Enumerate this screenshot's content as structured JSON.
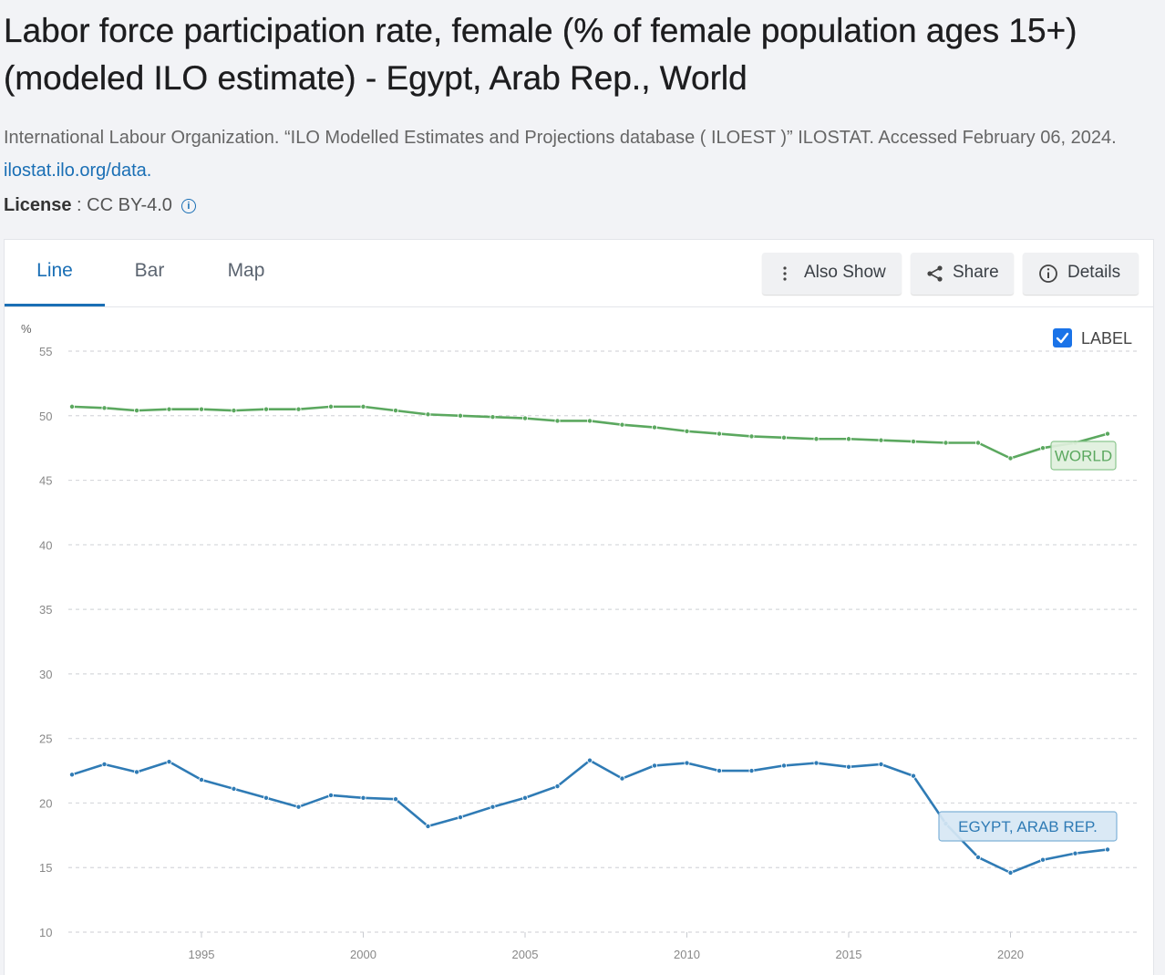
{
  "page": {
    "title": "Labor force participation rate, female (% of female population ages 15+) (modeled ILO estimate) - Egypt, Arab Rep., World",
    "source_text": "International Labour Organization. “ILO Modelled Estimates and Projections database ( ILOEST )” ILOSTAT. Accessed February 06, 2024. ",
    "source_link": "ilostat.ilo.org/data.",
    "license_label": "License",
    "license_value": " : CC BY-4.0"
  },
  "tabs": [
    {
      "label": "Line",
      "active": true
    },
    {
      "label": "Bar",
      "active": false
    },
    {
      "label": "Map",
      "active": false
    }
  ],
  "toolbar": {
    "also_show": "Also Show",
    "share": "Share",
    "details": "Details"
  },
  "label_toggle": {
    "label": "LABEL",
    "checked": true
  },
  "colors": {
    "world": "#5ba85f",
    "egypt": "#2f7bb5",
    "accent": "#1a6fb5"
  },
  "chart_data": {
    "type": "line",
    "ylabel": "%",
    "ylim": [
      10,
      55
    ],
    "yticks": [
      10,
      15,
      20,
      25,
      30,
      35,
      40,
      45,
      50,
      55
    ],
    "xlim": [
      1991,
      2023
    ],
    "xticks": [
      1995,
      2000,
      2005,
      2010,
      2015,
      2020
    ],
    "grid": true,
    "x": [
      1991,
      1992,
      1993,
      1994,
      1995,
      1996,
      1997,
      1998,
      1999,
      2000,
      2001,
      2002,
      2003,
      2004,
      2005,
      2006,
      2007,
      2008,
      2009,
      2010,
      2011,
      2012,
      2013,
      2014,
      2015,
      2016,
      2017,
      2018,
      2019,
      2020,
      2021,
      2022,
      2023
    ],
    "series": [
      {
        "name": "WORLD",
        "color": "#5ba85f",
        "values": [
          50.7,
          50.6,
          50.4,
          50.5,
          50.5,
          50.4,
          50.5,
          50.5,
          50.7,
          50.7,
          50.4,
          50.1,
          50.0,
          49.9,
          49.8,
          49.6,
          49.6,
          49.3,
          49.1,
          48.8,
          48.6,
          48.4,
          48.3,
          48.2,
          48.2,
          48.1,
          48.0,
          47.9,
          47.9,
          46.7,
          47.5,
          47.9,
          48.6
        ]
      },
      {
        "name": "EGYPT, ARAB REP.",
        "color": "#2f7bb5",
        "values": [
          22.2,
          23.0,
          22.4,
          23.2,
          21.8,
          21.1,
          20.4,
          19.7,
          20.6,
          20.4,
          20.3,
          18.2,
          18.9,
          19.7,
          20.4,
          21.3,
          23.3,
          21.9,
          22.9,
          23.1,
          22.5,
          22.5,
          22.9,
          23.1,
          22.8,
          23.0,
          22.1,
          18.4,
          15.8,
          14.6,
          15.6,
          16.1,
          16.4
        ]
      }
    ]
  }
}
